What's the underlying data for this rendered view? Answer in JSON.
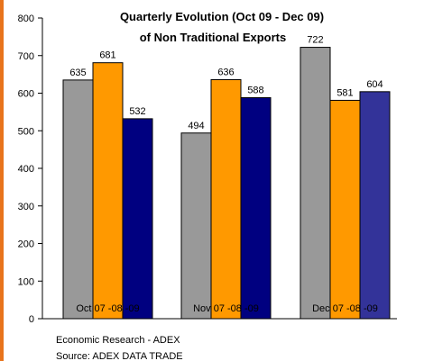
{
  "colors": {
    "border": "#E8741C",
    "series_oct": "#999999",
    "series_nov": "#FF9900",
    "series_dec_first": "#000080",
    "series_dec_last": "#333399",
    "axis": "#000000"
  },
  "chart_data": {
    "type": "bar",
    "title_lines": [
      "Quarterly Evolution  (Oct 09 - Dec 09)",
      "of Non Traditional Exports"
    ],
    "ylim": [
      0,
      800
    ],
    "yticks": [
      0,
      100,
      200,
      300,
      400,
      500,
      600,
      700,
      800
    ],
    "groups": [
      {
        "label": "Oct 07 -08 -09",
        "values": [
          635,
          681,
          532
        ]
      },
      {
        "label": "Nov 07 -08 -09",
        "values": [
          494,
          636,
          588
        ]
      },
      {
        "label": "Dec 07 -08 -09",
        "values": [
          722,
          581,
          604
        ]
      }
    ],
    "grid": false,
    "legend": "none"
  },
  "footer": {
    "line1": "Economic Research  - ADEX",
    "line2": "Source: ADEX DATA TRADE"
  }
}
